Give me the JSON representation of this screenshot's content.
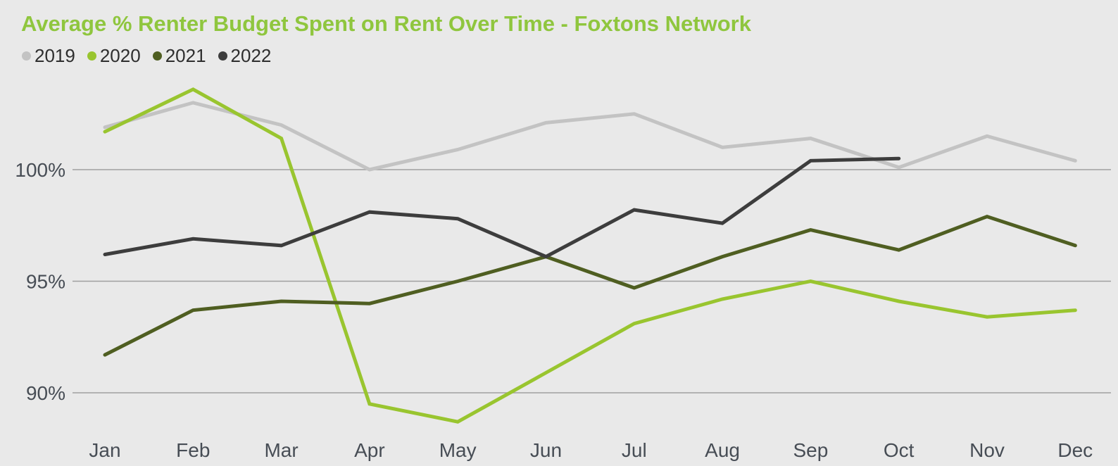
{
  "page": {
    "background_color": "#e9e9e9",
    "gridline_color": "#a0a0a0",
    "axis_text_color": "#474d55"
  },
  "chart_data": {
    "type": "line",
    "title": "Average % Renter Budget Spent on Rent Over Time - Foxtons Network",
    "title_color": "#8fc63e",
    "categories": [
      "Jan",
      "Feb",
      "Mar",
      "Apr",
      "May",
      "Jun",
      "Jul",
      "Aug",
      "Sep",
      "Oct",
      "Nov",
      "Dec"
    ],
    "xlabel": "",
    "ylabel": "",
    "ylim": [
      88,
      104.5
    ],
    "grid": "horizontal",
    "legend_position": "top-left",
    "y_axis": {
      "ticks": [
        {
          "label": "100%",
          "value": 100
        },
        {
          "label": "95%",
          "value": 95
        },
        {
          "label": "90%",
          "value": 90
        }
      ]
    },
    "series": [
      {
        "name": "2019",
        "color": "#c3c3c3",
        "values": [
          101.9,
          103.0,
          102.0,
          100.0,
          100.9,
          102.1,
          102.5,
          101.0,
          101.4,
          100.1,
          101.5,
          100.4
        ]
      },
      {
        "name": "2020",
        "color": "#99c52f",
        "values": [
          101.7,
          103.6,
          101.4,
          89.5,
          88.7,
          90.9,
          93.1,
          94.2,
          95.0,
          94.1,
          93.4,
          93.7
        ]
      },
      {
        "name": "2021",
        "color": "#4f5e21",
        "values": [
          91.7,
          93.7,
          94.1,
          94.0,
          95.0,
          96.1,
          94.7,
          96.1,
          97.3,
          96.4,
          97.9,
          96.6
        ]
      },
      {
        "name": "2022",
        "color": "#3d3d3d",
        "values": [
          96.2,
          96.9,
          96.6,
          98.1,
          97.8,
          96.1,
          98.2,
          97.6,
          100.4,
          100.5,
          null,
          null
        ]
      }
    ]
  }
}
